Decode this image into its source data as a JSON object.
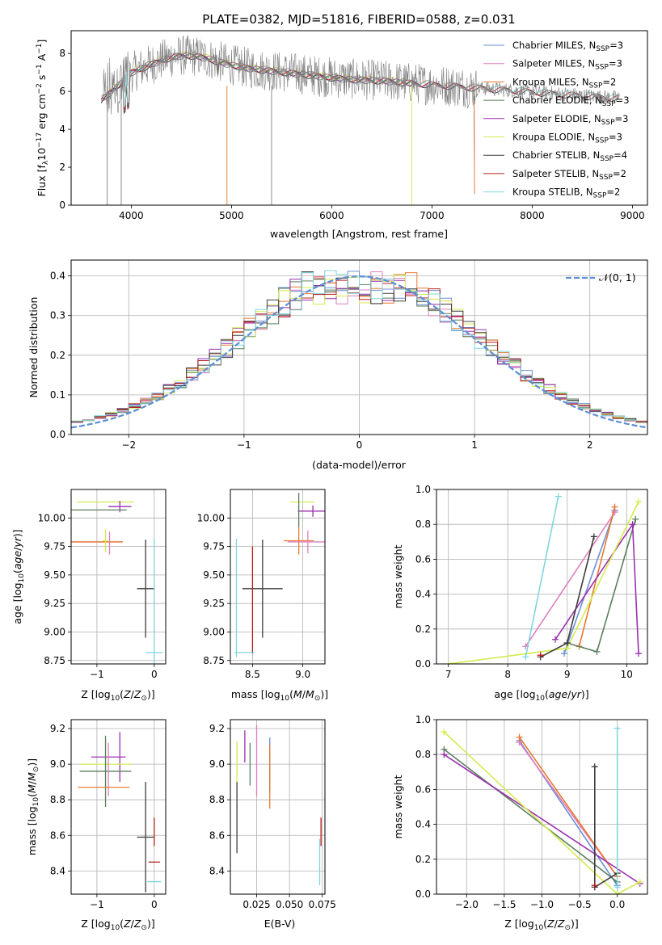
{
  "title": "PLATE=0382, MJD=51816, FIBERID=0588, z=0.031",
  "colors": {
    "chabrier_miles": "#6b8fd6",
    "salpeter_miles": "#e07fbf",
    "kroupa_miles": "#e8782e",
    "chabrier_elodie": "#5a7f5e",
    "salpeter_elodie": "#9b2fb0",
    "kroupa_elodie": "#d4ea4e",
    "chabrier_stelib": "#3c3c3c",
    "salpeter_stelib": "#b8201c",
    "kroupa_stelib": "#7fd6dd",
    "data": "#7f7f7f",
    "normal": "#5b8fd6"
  },
  "chart_data": [
    {
      "type": "line",
      "xlabel": "wavelength [Angstrom, rest frame]",
      "ylabel": "Flux [f_λ 10^-17 erg cm^-2 s^-1 A^-1]",
      "xlim": [
        3400,
        9150
      ],
      "ylim": [
        0,
        9.2
      ],
      "xticks": [
        4000,
        5000,
        6000,
        7000,
        8000,
        9000
      ],
      "yticks": [
        0,
        2,
        4,
        6,
        8
      ],
      "grid": false,
      "legend_position": "top-right",
      "series": [
        {
          "name": "Chabrier MILES, N_SSP=3",
          "color_key": "chabrier_miles"
        },
        {
          "name": "Salpeter MILES, N_SSP=3",
          "color_key": "salpeter_miles"
        },
        {
          "name": "Kroupa MILES, N_SSP=2",
          "color_key": "kroupa_miles"
        },
        {
          "name": "Chabrier ELODIE, N_SSP=3",
          "color_key": "chabrier_elodie"
        },
        {
          "name": "Salpeter ELODIE, N_SSP=3",
          "color_key": "salpeter_elodie"
        },
        {
          "name": "Kroupa ELODIE, N_SSP=3",
          "color_key": "kroupa_elodie"
        },
        {
          "name": "Chabrier STELIB, N_SSP=4",
          "color_key": "chabrier_stelib"
        },
        {
          "name": "Salpeter STELIB, N_SSP=2",
          "color_key": "salpeter_stelib"
        },
        {
          "name": "Kroupa STELIB, N_SSP=2",
          "color_key": "kroupa_stelib"
        }
      ]
    },
    {
      "type": "histogram",
      "xlabel": "(data-model)/error",
      "ylabel": "Normed distribution",
      "xlim": [
        -2.5,
        2.5
      ],
      "ylim": [
        0,
        0.44
      ],
      "xticks": [
        -2,
        -1,
        0,
        1,
        2
      ],
      "yticks": [
        0.0,
        0.1,
        0.2,
        0.3,
        0.4
      ],
      "grid": true,
      "legend_position": "top-right",
      "legend": "𝒩(0, 1)",
      "normal_curve": {
        "mean": 0,
        "sigma": 1
      }
    },
    {
      "type": "errorbar",
      "xlabel": "Z [log10(Z/Z⊙)]",
      "ylabel": "age  [log10(age/yr)]",
      "xlim": [
        -1.45,
        0.2
      ],
      "ylim": [
        8.72,
        10.25
      ],
      "xticks": [
        -1,
        0
      ],
      "yticks": [
        8.75,
        9.0,
        9.25,
        9.5,
        9.75,
        10.0
      ],
      "grid": true,
      "points": [
        {
          "model": "kroupa_elodie",
          "x": -0.85,
          "xerr": 0.5,
          "y": 10.14,
          "yerr": 0.0
        },
        {
          "model": "salpeter_elodie",
          "x": -0.6,
          "xerr": 0.2,
          "y": 10.1,
          "yerr": 0.05
        },
        {
          "model": "chabrier_elodie",
          "x": -0.98,
          "xerr": 0.5,
          "y": 10.07,
          "yerr": 0.0
        },
        {
          "model": "salpeter_elodie",
          "x": -0.55,
          "xerr": 0.0,
          "y": 10.06,
          "yerr": 0.0
        },
        {
          "model": "salpeter_miles",
          "x": -1.0,
          "xerr": 0.45,
          "y": 9.79,
          "yerr": 0.0
        },
        {
          "model": "kroupa_miles",
          "x": -1.0,
          "xerr": 0.45,
          "y": 9.79,
          "yerr": 0.0
        },
        {
          "model": "kroupa_elodie",
          "x": -0.85,
          "xerr": 0.05,
          "y": 9.8,
          "yerr": 0.1
        },
        {
          "model": "salpeter_miles",
          "x": -0.78,
          "xerr": 0.0,
          "y": 9.78,
          "yerr": 0.1
        },
        {
          "model": "chabrier_stelib",
          "x": -0.15,
          "xerr": 0.15,
          "y": 9.38,
          "yerr": 0.43
        },
        {
          "model": "kroupa_stelib",
          "x": 0.0,
          "xerr": 0.15,
          "y": 8.82,
          "yerr": 1.0
        }
      ]
    },
    {
      "type": "errorbar",
      "xlabel": "mass [log10(M/M⊙)]",
      "xlim": [
        8.28,
        9.22
      ],
      "ylim": [
        8.72,
        10.25
      ],
      "xticks": [
        8.5,
        9.0
      ],
      "yticks": [
        8.75,
        9.0,
        9.25,
        9.5,
        9.75,
        10.0
      ],
      "grid": true,
      "points": [
        {
          "model": "kroupa_elodie",
          "x": 9.0,
          "xerr": 0.12,
          "y": 10.14,
          "yerr": 0.0
        },
        {
          "model": "salpeter_elodie",
          "x": 9.1,
          "xerr": 0.15,
          "y": 10.06,
          "yerr": 0.05
        },
        {
          "model": "chabrier_elodie",
          "x": 8.96,
          "xerr": 0.0,
          "y": 10.07,
          "yerr": 0.15
        },
        {
          "model": "kroupa_miles",
          "x": 8.96,
          "xerr": 0.15,
          "y": 9.8,
          "yerr": 0.12
        },
        {
          "model": "salpeter_miles",
          "x": 9.05,
          "xerr": 0.2,
          "y": 9.79,
          "yerr": 0.1
        },
        {
          "model": "chabrier_stelib",
          "x": 8.6,
          "xerr": 0.2,
          "y": 9.38,
          "yerr": 0.43
        },
        {
          "model": "salpeter_stelib",
          "x": 8.5,
          "xerr": 0.0,
          "y": 9.28,
          "yerr": 0.47
        },
        {
          "model": "salpeter_stelib",
          "x": 8.52,
          "xerr": 0.0,
          "y": 8.82,
          "yerr": 0.0
        },
        {
          "model": "kroupa_stelib",
          "x": 8.34,
          "xerr": 0.0,
          "y": 9.3,
          "yerr": 0.52
        },
        {
          "model": "kroupa_stelib",
          "x": 8.42,
          "xerr": 0.1,
          "y": 8.82,
          "yerr": 0.0
        }
      ]
    },
    {
      "type": "line",
      "xlabel": "age  [log10(age/yr)]",
      "ylabel": "mass weight",
      "xlim": [
        6.8,
        10.35
      ],
      "ylim": [
        0,
        1.0
      ],
      "xticks": [
        7,
        8,
        9,
        10
      ],
      "yticks": [
        0.0,
        0.2,
        0.4,
        0.6,
        0.8,
        1.0
      ],
      "grid": true,
      "series": [
        {
          "model": "chabrier_miles",
          "x": [
            8.95,
            9.8
          ],
          "y": [
            0.06,
            0.88
          ]
        },
        {
          "model": "salpeter_miles",
          "x": [
            8.3,
            9.8
          ],
          "y": [
            0.1,
            0.87
          ]
        },
        {
          "model": "kroupa_miles",
          "x": [
            9.2,
            9.8
          ],
          "y": [
            0.1,
            0.9
          ]
        },
        {
          "model": "chabrier_elodie",
          "x": [
            9.0,
            9.5,
            10.15
          ],
          "y": [
            0.12,
            0.07,
            0.83
          ]
        },
        {
          "model": "salpeter_elodie",
          "x": [
            8.8,
            10.1,
            10.2
          ],
          "y": [
            0.14,
            0.8,
            0.06
          ]
        },
        {
          "model": "kroupa_elodie",
          "x": [
            7.0,
            9.0,
            10.2
          ],
          "y": [
            0.0,
            0.09,
            0.93
          ]
        },
        {
          "model": "chabrier_stelib",
          "x": [
            8.55,
            9.0,
            9.45
          ],
          "y": [
            0.04,
            0.12,
            0.73
          ]
        },
        {
          "model": "salpeter_stelib",
          "x": [
            8.55
          ],
          "y": [
            0.05
          ]
        },
        {
          "model": "kroupa_stelib",
          "x": [
            8.3,
            8.85
          ],
          "y": [
            0.04,
            0.96
          ]
        }
      ]
    },
    {
      "type": "errorbar",
      "xlabel": "Z [log10(Z/Z⊙)]",
      "ylabel": "mass [log10(M/M⊙)]",
      "xlim": [
        -1.45,
        0.2
      ],
      "ylim": [
        8.27,
        9.25
      ],
      "xticks": [
        -1,
        0
      ],
      "yticks": [
        8.4,
        8.6,
        8.8,
        9.0,
        9.2
      ],
      "grid": true,
      "points": [
        {
          "model": "salpeter_elodie",
          "x": -0.6,
          "xerr": 0.0,
          "y": 9.04,
          "yerr": 0.14
        },
        {
          "model": "salpeter_elodie",
          "x": -0.8,
          "xerr": 0.3,
          "y": 9.04,
          "yerr": 0.0
        },
        {
          "model": "kroupa_elodie",
          "x": -0.85,
          "xerr": 0.45,
          "y": 9.0,
          "yerr": 0.14
        },
        {
          "model": "chabrier_elodie",
          "x": -0.85,
          "xerr": 0.45,
          "y": 8.96,
          "yerr": 0.2
        },
        {
          "model": "salpeter_miles",
          "x": -0.8,
          "xerr": 0.0,
          "y": 8.97,
          "yerr": 0.15
        },
        {
          "model": "kroupa_miles",
          "x": -0.88,
          "xerr": 0.45,
          "y": 8.87,
          "yerr": 0.0
        },
        {
          "model": "chabrier_stelib",
          "x": -0.15,
          "xerr": 0.15,
          "y": 8.59,
          "yerr": 0.31
        },
        {
          "model": "salpeter_stelib",
          "x": 0.0,
          "xerr": 0.0,
          "y": 8.62,
          "yerr": 0.08
        },
        {
          "model": "salpeter_stelib",
          "x": 0.0,
          "xerr": 0.1,
          "y": 8.45,
          "yerr": 0.0
        },
        {
          "model": "kroupa_stelib",
          "x": 0.0,
          "xerr": 0.12,
          "y": 8.34,
          "yerr": 0.0
        }
      ]
    },
    {
      "type": "errorbar",
      "xlabel": "E(B-V)",
      "xlim": [
        0.005,
        0.077
      ],
      "ylim": [
        8.27,
        9.25
      ],
      "xticks": [
        0.025,
        0.05,
        0.075
      ],
      "yticks": [
        8.4,
        8.6,
        8.8,
        9.0,
        9.2
      ],
      "grid": true,
      "points": [
        {
          "model": "kroupa_elodie",
          "x": 0.01,
          "xerr": 0.0,
          "y": 9.0,
          "yerr": 0.13
        },
        {
          "model": "chabrier_stelib",
          "x": 0.01,
          "xerr": 0.0,
          "y": 8.7,
          "yerr": 0.2
        },
        {
          "model": "salpeter_elodie",
          "x": 0.016,
          "xerr": 0.0,
          "y": 9.1,
          "yerr": 0.09
        },
        {
          "model": "chabrier_elodie",
          "x": 0.02,
          "xerr": 0.0,
          "y": 9.0,
          "yerr": 0.12
        },
        {
          "model": "salpeter_miles",
          "x": 0.025,
          "xerr": 0.0,
          "y": 9.02,
          "yerr": 0.2
        },
        {
          "model": "chabrier_miles",
          "x": 0.035,
          "xerr": 0.0,
          "y": 9.0,
          "yerr": 0.15
        },
        {
          "model": "kroupa_miles",
          "x": 0.035,
          "xerr": 0.0,
          "y": 8.93,
          "yerr": 0.18
        },
        {
          "model": "salpeter_stelib",
          "x": 0.074,
          "xerr": 0.0,
          "y": 8.62,
          "yerr": 0.08
        },
        {
          "model": "kroupa_stelib",
          "x": 0.073,
          "xerr": 0.0,
          "y": 8.45,
          "yerr": 0.13
        }
      ]
    },
    {
      "type": "line",
      "xlabel": "Z [log10(Z/Z⊙)]",
      "ylabel": "mass weight",
      "xlim": [
        -2.4,
        0.4
      ],
      "ylim": [
        0,
        1.0
      ],
      "xticks": [
        -2.0,
        -1.5,
        -1.0,
        -0.5,
        0.0
      ],
      "yticks": [
        0.0,
        0.2,
        0.4,
        0.6,
        0.8,
        1.0
      ],
      "grid": true,
      "series": [
        {
          "model": "chabrier_miles",
          "x": [
            -1.3,
            0.0
          ],
          "y": [
            0.88,
            0.05
          ]
        },
        {
          "model": "salpeter_miles",
          "x": [
            -1.3,
            0.0
          ],
          "y": [
            0.87,
            0.1
          ]
        },
        {
          "model": "kroupa_miles",
          "x": [
            -1.3,
            0.0
          ],
          "y": [
            0.9,
            0.1
          ]
        },
        {
          "model": "chabrier_elodie",
          "x": [
            -2.3,
            0.0
          ],
          "y": [
            0.83,
            0.07
          ]
        },
        {
          "model": "salpeter_elodie",
          "x": [
            -2.3,
            0.3
          ],
          "y": [
            0.8,
            0.06
          ]
        },
        {
          "model": "kroupa_elodie",
          "x": [
            -2.3,
            0.0,
            0.3
          ],
          "y": [
            0.93,
            0.0,
            0.07
          ]
        },
        {
          "model": "chabrier_stelib",
          "x": [
            -0.3,
            -0.3,
            0.0
          ],
          "y": [
            0.73,
            0.04,
            0.12
          ]
        },
        {
          "model": "salpeter_stelib",
          "x": [
            -0.3
          ],
          "y": [
            0.05
          ]
        },
        {
          "model": "kroupa_stelib",
          "x": [
            0.0,
            0.0
          ],
          "y": [
            0.04,
            0.95
          ]
        }
      ]
    }
  ]
}
